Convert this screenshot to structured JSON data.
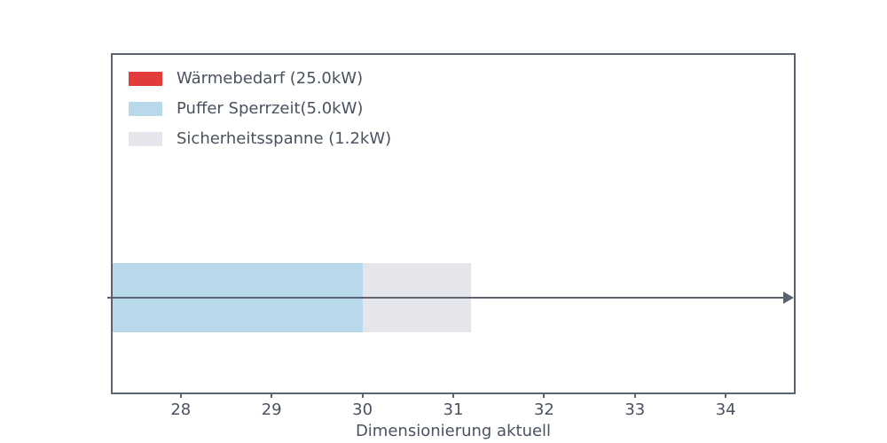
{
  "chart_data": {
    "type": "bar",
    "orientation": "horizontal",
    "stacked": true,
    "title": "",
    "xlabel": "Dimensionierung aktuell",
    "ylabel": "",
    "xlim": [
      27.25,
      34.75
    ],
    "xticks": [
      "28",
      "29",
      "30",
      "31",
      "32",
      "33",
      "34"
    ],
    "grid": false,
    "legend_position": "upper left",
    "series": [
      {
        "name": "Wärmebedarf (25.0kW)",
        "value": 25.0,
        "color": "#e23b3c"
      },
      {
        "name": "Puffer Sperrzeit(5.0kW)",
        "value": 5.0,
        "color": "#b8d9ea"
      },
      {
        "name": "Sicherheitsspanne (1.2kW)",
        "value": 1.2,
        "color": "#e4e6eb"
      }
    ],
    "annotation": {
      "arrow_direction": "right",
      "arrow_color": "#5b6370",
      "arrow_through_bar_center": true
    },
    "axis_color": "#5b6370",
    "text_color": "#4a5260",
    "background": "#ffffff"
  }
}
